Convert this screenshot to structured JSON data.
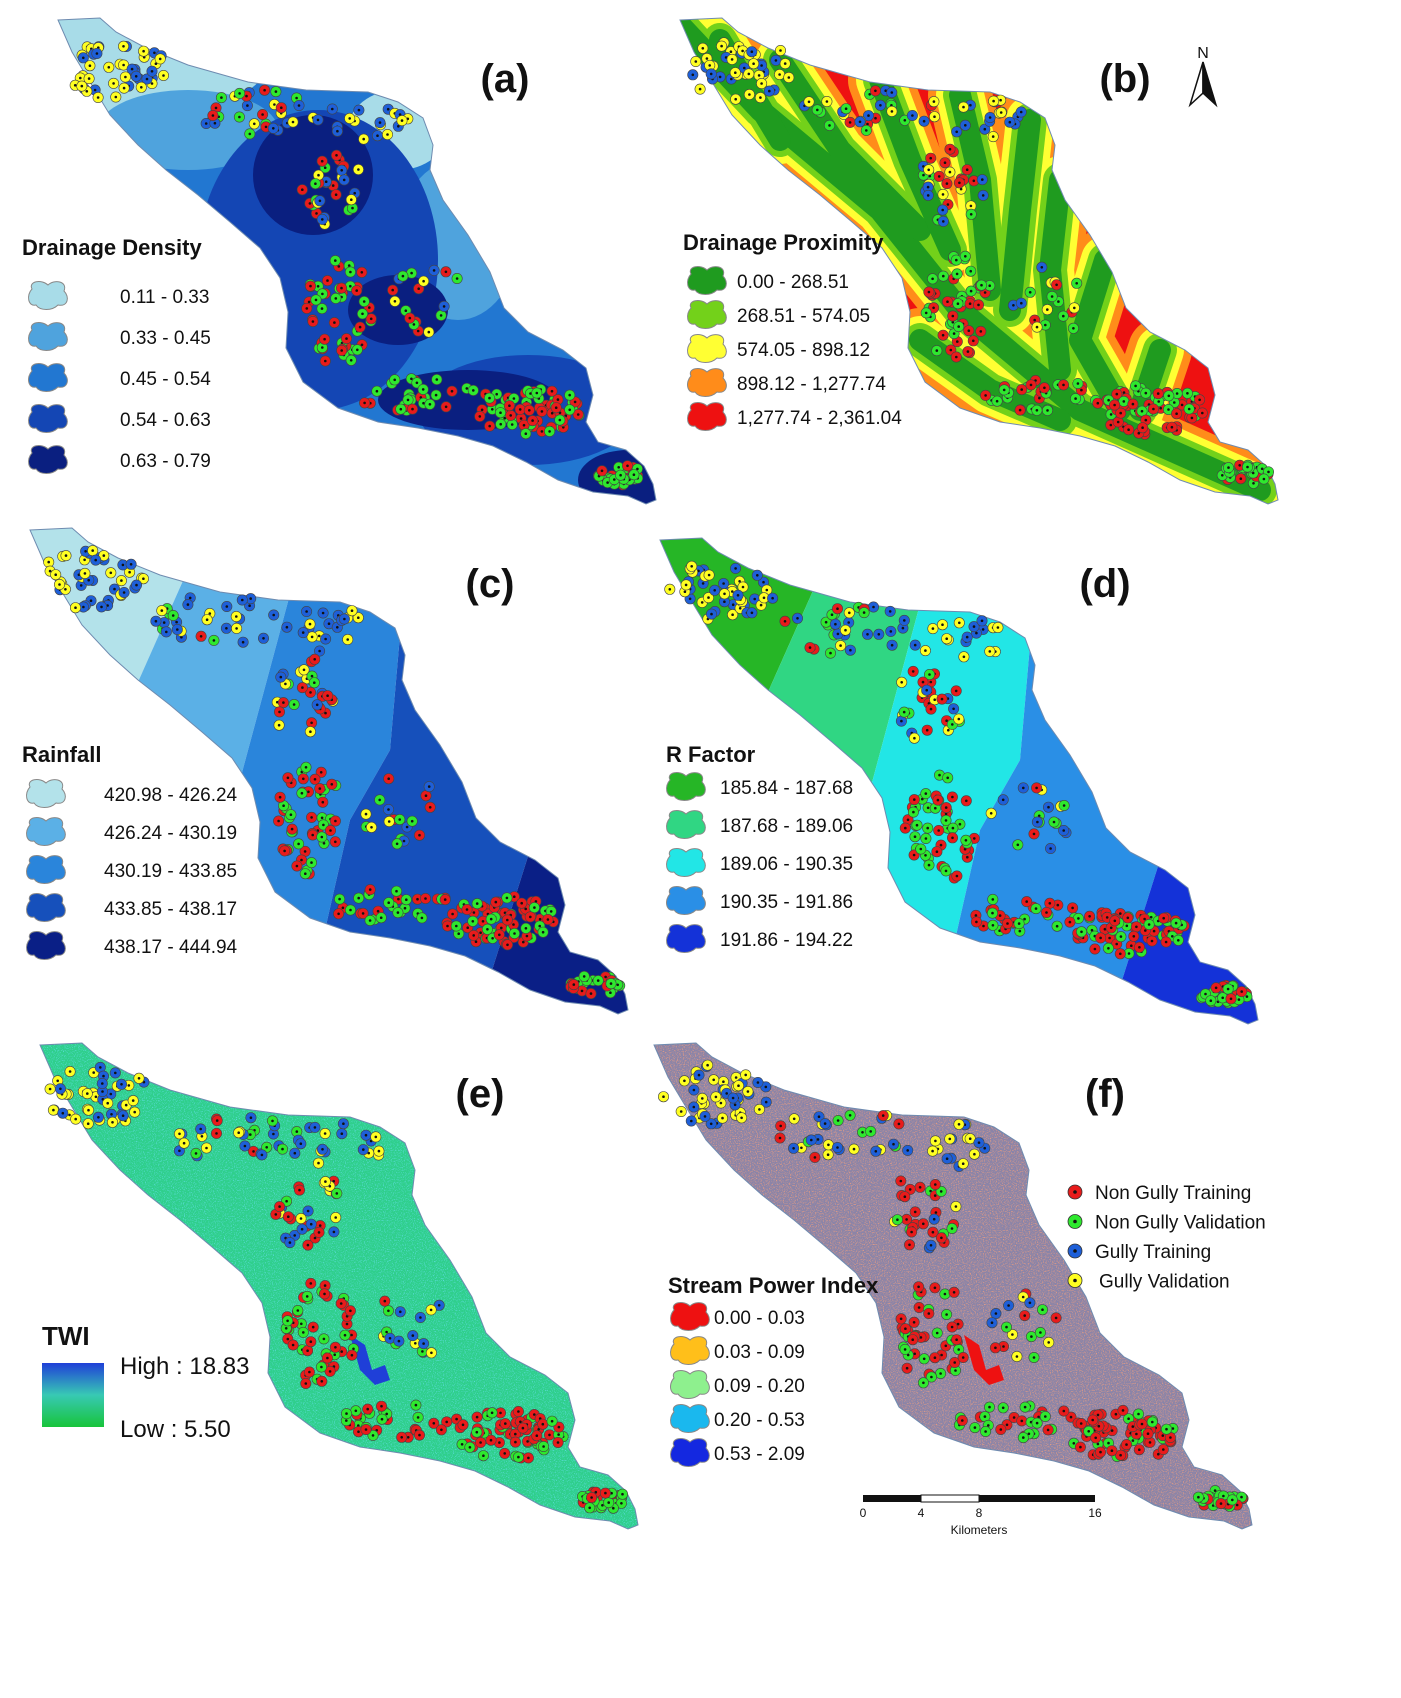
{
  "figure": {
    "panels": [
      {
        "id": "a",
        "label": "(a)",
        "legend_title": "Drainage Density",
        "classes": [
          "0.11 - 0.33",
          "0.33 - 0.45",
          "0.45 - 0.54",
          "0.54 - 0.63",
          "0.63 - 0.79"
        ],
        "colors": [
          "#a8dce8",
          "#4fa3dd",
          "#2277d1",
          "#1446b4",
          "#0a1f80"
        ]
      },
      {
        "id": "b",
        "label": "(b)",
        "legend_title": "Drainage Proximity",
        "classes": [
          "0.00 - 268.51",
          "268.51 - 574.05",
          "574.05 - 898.12",
          "898.12 - 1,277.74",
          "1,277.74 - 2,361.04"
        ],
        "colors": [
          "#1f9b1f",
          "#73d11a",
          "#ffff33",
          "#ff8c1a",
          "#ee1111"
        ]
      },
      {
        "id": "c",
        "label": "(c)",
        "legend_title": "Rainfall",
        "classes": [
          "420.98 - 426.24",
          "426.24 - 430.19",
          "430.19 - 433.85",
          "433.85 - 438.17",
          "438.17 - 444.94"
        ],
        "colors": [
          "#b3e2ea",
          "#5bb0e6",
          "#2a85db",
          "#1650bb",
          "#0a1f86"
        ]
      },
      {
        "id": "d",
        "label": "(d)",
        "legend_title": "R  Factor",
        "classes": [
          "185.84 - 187.68",
          "187.68 - 189.06",
          "189.06 - 190.35",
          "190.35 - 191.86",
          "191.86 - 194.22"
        ],
        "colors": [
          "#26b626",
          "#30d683",
          "#22e6e6",
          "#2a8fe6",
          "#1432d8"
        ]
      },
      {
        "id": "e",
        "label": "(e)",
        "legend_title": "TWI",
        "high_label": "High : 18.83",
        "low_label": "Low : 5.50",
        "colors": [
          "#1f4fe0",
          "#31c98a",
          "#18c43a"
        ]
      },
      {
        "id": "f",
        "label": "(f)",
        "legend_title": "Stream Power Index",
        "classes": [
          "0.00 - 0.03",
          "0.03 - 0.09",
          "0.09 - 0.20",
          "0.20 - 0.53",
          "0.53 - 2.09"
        ],
        "colors": [
          "#ee1111",
          "#ffbf1a",
          "#8ef08e",
          "#1ab8ee",
          "#1428e0"
        ]
      }
    ],
    "points_legend": [
      {
        "label": "Non Gully Training",
        "color": "#e81b1b"
      },
      {
        "label": "Non Gully Validation",
        "color": "#2ee82e"
      },
      {
        "label": "Gully Training",
        "color": "#1e5fd8"
      },
      {
        "label": "Gully Validation",
        "color": "#ffff22"
      }
    ],
    "north_label": "N",
    "scale": {
      "ticks": [
        "0",
        "4",
        "8",
        "16"
      ],
      "unit": "Kilometers"
    }
  }
}
